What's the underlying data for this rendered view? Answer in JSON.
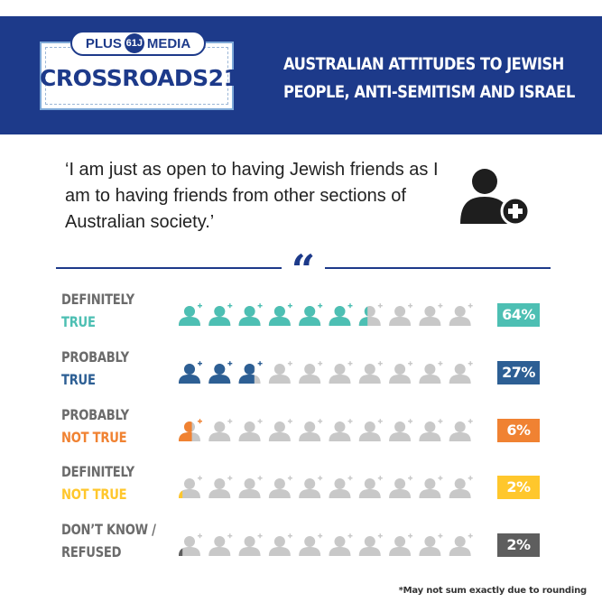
{
  "header": {
    "logo_prefix": "PLUS",
    "logo_badge": "61J",
    "logo_suffix": "MEDIA",
    "logo_word": "CROSSROADS21",
    "title_line1": "Australian attitudes to Jewish",
    "title_line2": "people, anti-semitism and Israel"
  },
  "quote": "‘I am just as open to having Jewish friends as I am to having friends from other sections of Australian society.’",
  "icons": {
    "top_right": "user-plus-icon",
    "divider": "quotation-mark-icon",
    "row_icon": "user-plus-icon"
  },
  "colors": {
    "header_bg": "#1d3a8a",
    "empty_icon": "#c8c8c8",
    "definitely_true": "#4dbfb3",
    "probably_true": "#2d5f94",
    "probably_not_true": "#f08232",
    "definitely_not_true": "#ffc72c",
    "dont_know": "#5e5e5e"
  },
  "chart_data": {
    "type": "bar",
    "icons_per_row": 10,
    "series": [
      {
        "label_line1": "Definitely",
        "label_line2": "True",
        "value": 64,
        "display": "64%",
        "color": "#4dbfb3",
        "label_color": "#4dbfb3"
      },
      {
        "label_line1": "Probably",
        "label_line2": "True",
        "value": 27,
        "display": "27%",
        "color": "#2d5f94",
        "label_color": "#2d5f94"
      },
      {
        "label_line1": "Probably",
        "label_line2": "Not True",
        "value": 6,
        "display": "6%",
        "color": "#f08232",
        "label_color": "#f08232"
      },
      {
        "label_line1": "Definitely",
        "label_line2": "Not True",
        "value": 2,
        "display": "2%",
        "color": "#ffc72c",
        "label_color": "#ffc72c"
      },
      {
        "label_line1": "Don’t know /",
        "label_line2": "Refused",
        "value": 2,
        "display": "2%",
        "color": "#5e5e5e",
        "label_color": "#6b6b6b"
      }
    ]
  },
  "footnote": "*May not sum exactly due to rounding"
}
